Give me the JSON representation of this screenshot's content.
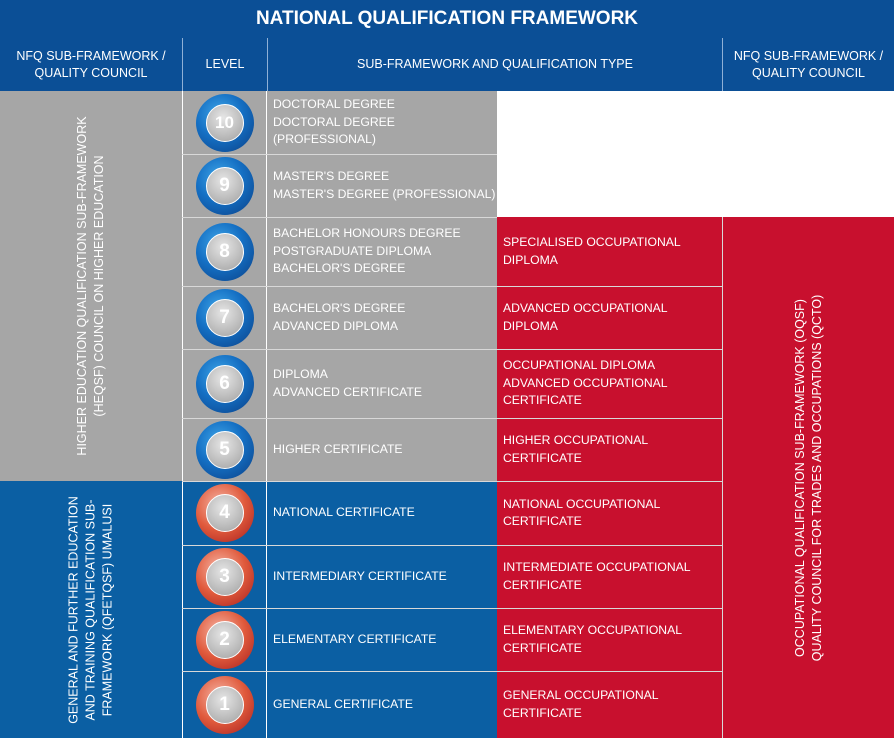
{
  "title": "NATIONAL QUALIFICATION FRAMEWORK",
  "headers": {
    "col1": "NFQ SUB-FRAMEWORK / QUALITY COUNCIL",
    "col2": "LEVEL",
    "col3": "SUB-FRAMEWORK AND QUALIFICATION TYPE",
    "col4": "NFQ SUB-FRAMEWORK / QUALITY COUNCIL"
  },
  "sub_frameworks": {
    "heqsf": {
      "line1": "HIGHER EDUCATION QUALIFICATION SUB-FRAMEWORK",
      "line2": "(HEQSF) COUNCIL ON HIGHER EDUCATION"
    },
    "gfetqsf": {
      "line1": "GENERAL AND FURTHER EDUCATION",
      "line2": "AND TRAINING QUALIFICATION SUB-",
      "line3": "FRAMEWORK (QFETQSF) UMALUSI"
    },
    "oqsf": {
      "line1": "OCCUPATIONAL QUALIFICATION SUB-FRAMEWORK (OQSF)",
      "line2": "QUALITY COUNCIL FOR TRADES AND OCCUPATIONS (QCTO)"
    }
  },
  "levels": [
    {
      "level": "10",
      "he": [
        "DOCTORAL DEGREE",
        "DOCTORAL DEGREE (PROFESSIONAL)"
      ],
      "occ": []
    },
    {
      "level": "9",
      "he": [
        "MASTER'S DEGREE",
        "MASTER'S DEGREE (PROFESSIONAL)"
      ],
      "occ": []
    },
    {
      "level": "8",
      "he": [
        "BACHELOR HONOURS DEGREE",
        "POSTGRADUATE DIPLOMA",
        "BACHELOR'S DEGREE"
      ],
      "occ": [
        "SPECIALISED OCCUPATIONAL",
        "DIPLOMA"
      ]
    },
    {
      "level": "7",
      "he": [
        "BACHELOR'S DEGREE",
        "ADVANCED DIPLOMA"
      ],
      "occ": [
        "ADVANCED OCCUPATIONAL",
        "DIPLOMA"
      ]
    },
    {
      "level": "6",
      "he": [
        "DIPLOMA",
        "ADVANCED CERTIFICATE"
      ],
      "occ": [
        "OCCUPATIONAL DIPLOMA",
        "ADVANCED OCCUPATIONAL",
        "CERTIFICATE"
      ]
    },
    {
      "level": "5",
      "he": [
        "HIGHER CERTIFICATE"
      ],
      "occ": [
        "HIGHER OCCUPATIONAL",
        "CERTIFICATE"
      ]
    },
    {
      "level": "4",
      "he": [
        "NATIONAL CERTIFICATE"
      ],
      "occ": [
        "NATIONAL OCCUPATIONAL",
        "CERTIFICATE"
      ]
    },
    {
      "level": "3",
      "he": [
        "INTERMEDIARY CERTIFICATE"
      ],
      "occ": [
        "INTERMEDIATE OCCUPATIONAL",
        "CERTIFICATE"
      ]
    },
    {
      "level": "2",
      "he": [
        "ELEMENTARY CERTIFICATE"
      ],
      "occ": [
        "ELEMENTARY OCCUPATIONAL",
        "CERTIFICATE"
      ]
    },
    {
      "level": "1",
      "he": [
        "GENERAL CERTIFICATE"
      ],
      "occ": [
        "GENERAL OCCUPATIONAL",
        "CERTIFICATE"
      ]
    }
  ],
  "colors": {
    "header_blue": "#0b4f96",
    "heqsf_grey": "#a6a6a6",
    "gfetqsf_blue": "#0b5fa3",
    "oqsf_red": "#c8102e"
  }
}
